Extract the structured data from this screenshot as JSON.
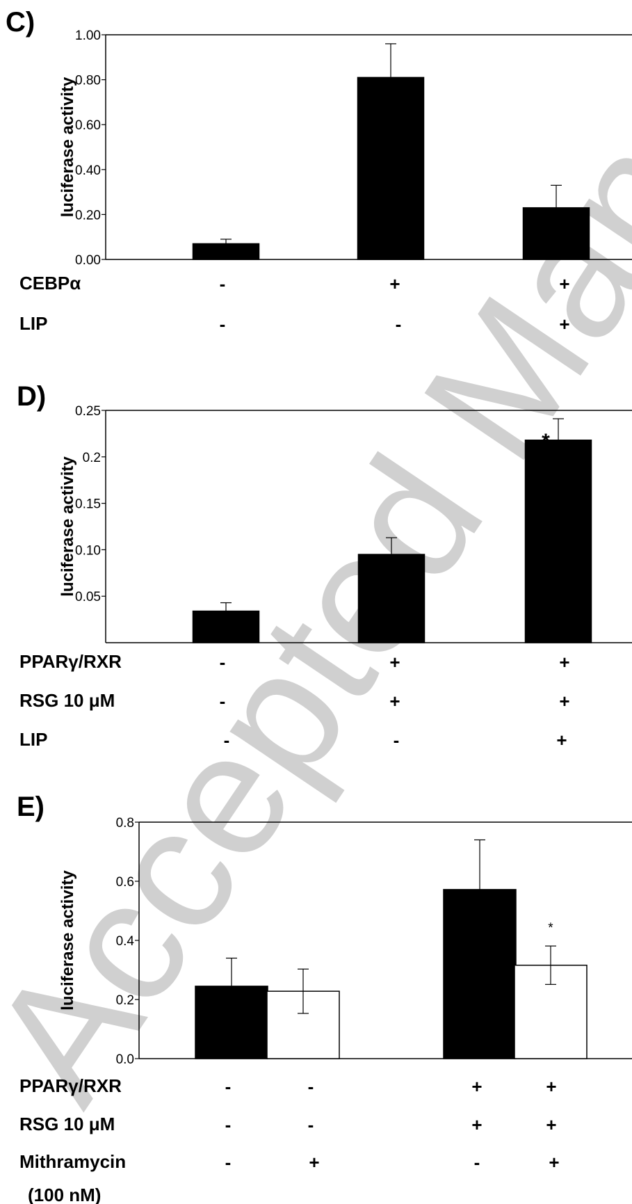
{
  "watermark": "Accepted Manuscript",
  "chart_data": [
    {
      "panel": "C)",
      "type": "bar",
      "ylabel": "luciferase activity",
      "ylim": [
        0,
        1.0
      ],
      "yticks": [
        "0.00",
        "0.20",
        "0.40",
        "0.60",
        "0.80",
        "1.00"
      ],
      "categories": [
        "1",
        "2",
        "3"
      ],
      "series": [
        {
          "color": "#000000",
          "values": [
            0.07,
            0.81,
            0.23
          ],
          "errors": [
            0.02,
            0.15,
            0.1
          ]
        }
      ],
      "conditions": [
        {
          "label": "CEBPα",
          "signs": [
            "-",
            "+",
            "+"
          ]
        },
        {
          "label": "LIP",
          "signs": [
            "-",
            "-",
            "+"
          ]
        }
      ],
      "annotations": []
    },
    {
      "panel": "D)",
      "type": "bar",
      "ylabel": "luciferase activity",
      "ylim": [
        0,
        0.25
      ],
      "yticks": [
        "0.05",
        "0.10",
        "0.15",
        "0.2",
        "0.25"
      ],
      "categories": [
        "1",
        "2",
        "3"
      ],
      "series": [
        {
          "color": "#000000",
          "values": [
            0.034,
            0.095,
            0.218
          ],
          "errors": [
            0.009,
            0.018,
            0.023
          ]
        }
      ],
      "conditions": [
        {
          "label": "PPARγ/RXR",
          "signs": [
            "-",
            "+",
            "+"
          ]
        },
        {
          "label": "RSG 10 μM",
          "signs": [
            "-",
            "+",
            "+"
          ]
        },
        {
          "label": "LIP",
          "signs": [
            "-",
            "-",
            "+"
          ]
        }
      ],
      "annotations": [
        {
          "text": "*",
          "category": 2,
          "series": 0
        }
      ]
    },
    {
      "panel": "E)",
      "type": "bar",
      "ylabel": "luciferase activity",
      "ylim": [
        0,
        0.8
      ],
      "yticks": [
        "0.0",
        "0.2",
        "0.4",
        "0.6",
        "0.8"
      ],
      "categories": [
        "1",
        "2"
      ],
      "series": [
        {
          "color": "#000000",
          "values": [
            0.245,
            0.572
          ],
          "errors": [
            0.095,
            0.168
          ]
        },
        {
          "color": "#ffffff",
          "values": [
            0.228,
            0.316
          ],
          "errors": [
            0.075,
            0.065
          ]
        }
      ],
      "conditions": [
        {
          "label": "PPARγ/RXR",
          "signs": [
            "-",
            "-",
            "+",
            "+"
          ]
        },
        {
          "label": "RSG 10 μM",
          "signs": [
            "-",
            "-",
            "+",
            "+"
          ]
        },
        {
          "label": "Mithramycin",
          "signs": [
            "-",
            "+",
            "-",
            "+"
          ]
        },
        {
          "label": "(100 nM)",
          "signs": []
        }
      ],
      "annotations": [
        {
          "text": "*",
          "category": 1,
          "series": 1
        }
      ]
    }
  ]
}
